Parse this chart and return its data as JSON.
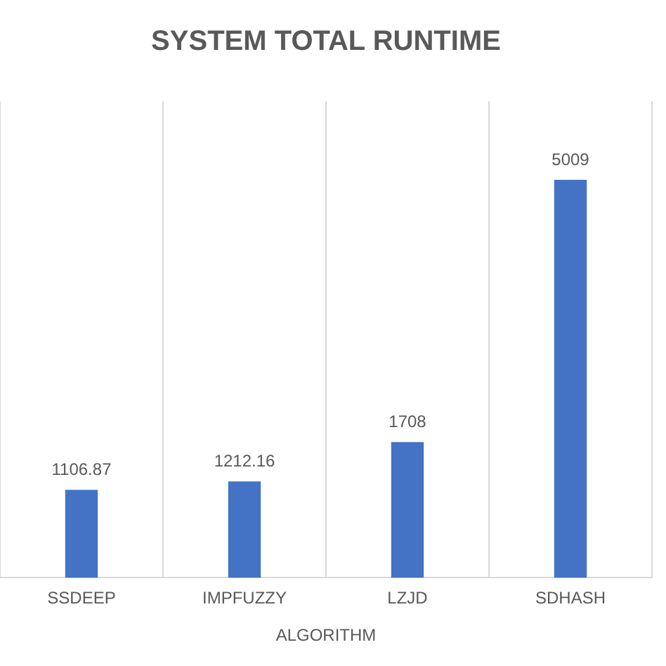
{
  "chart_data": {
    "type": "bar",
    "title": "SYSTEM TOTAL RUNTIME",
    "xlabel": "ALGORITHM",
    "categories": [
      "SSDEEP",
      "IMPFUZZY",
      "LZJD",
      "SDHASH"
    ],
    "values": [
      1106.87,
      1212.16,
      1708,
      5009
    ],
    "color": "#4472c4",
    "data_labels": true,
    "grid": "x",
    "tick_labels": "x",
    "legend": false
  }
}
